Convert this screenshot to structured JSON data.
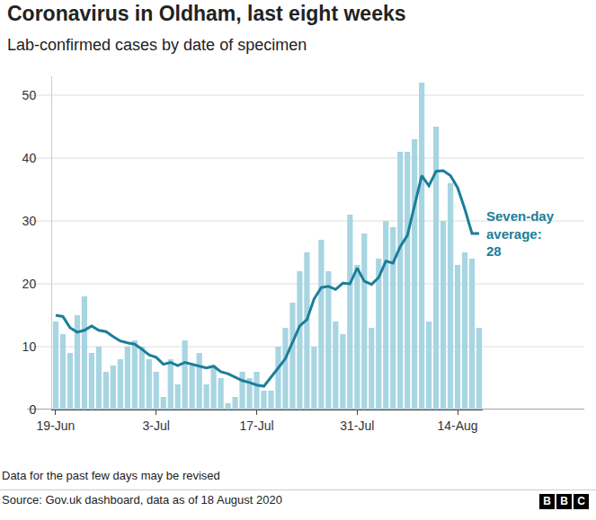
{
  "chart_data": {
    "type": "bar",
    "title": "Coronavirus in Oldham, last eight weeks",
    "subtitle": "Lab-confirmed cases by date of specimen",
    "categories": [
      "19-Jun",
      null,
      null,
      null,
      null,
      null,
      null,
      null,
      null,
      null,
      null,
      null,
      null,
      null,
      "3-Jul",
      null,
      null,
      null,
      null,
      null,
      null,
      null,
      null,
      null,
      null,
      null,
      null,
      null,
      "17-Jul",
      null,
      null,
      null,
      null,
      null,
      null,
      null,
      null,
      null,
      null,
      null,
      null,
      null,
      "31-Jul",
      null,
      null,
      null,
      null,
      null,
      null,
      null,
      null,
      null,
      null,
      null,
      null,
      null,
      "14-Aug",
      null,
      null,
      null
    ],
    "series": [
      {
        "type": "bar",
        "color": "#a8d5e2",
        "values": [
          14,
          12,
          9,
          15,
          18,
          9,
          10,
          6,
          7,
          8,
          10,
          11,
          10,
          8,
          6,
          2,
          8,
          4,
          11,
          7,
          9,
          4,
          7,
          5,
          1,
          2,
          6,
          5,
          6,
          3,
          3,
          10,
          13,
          17,
          22,
          25,
          10,
          27,
          22,
          14,
          12,
          31,
          23,
          28,
          13,
          24,
          30,
          29,
          41,
          41,
          43,
          52,
          14,
          45,
          30,
          36,
          23,
          25,
          24,
          13
        ]
      },
      {
        "type": "line",
        "color": "#1b7e99",
        "values": [
          15,
          14.8,
          13,
          12.3,
          12.6,
          13.3,
          12.6,
          12.4,
          11.6,
          10.9,
          10.6,
          10.4,
          9.6,
          8.7,
          8.3,
          7.2,
          7.5,
          7,
          7.5,
          7.2,
          6.8,
          6.6,
          6.9,
          6,
          5.7,
          5.2,
          4.6,
          4.3,
          3.9,
          3.7,
          5.1,
          6.6,
          8.1,
          10.7,
          13.3,
          14.3,
          17.6,
          19.4,
          19.6,
          19.1,
          20.1,
          20,
          22.5,
          20.4,
          19.9,
          21,
          23.6,
          23.3,
          25.9,
          27.7,
          32.4,
          37.2,
          35.6,
          37.9,
          38,
          37.2,
          35.3,
          31.9,
          28,
          28
        ]
      }
    ],
    "annotations": [
      {
        "text": "Seven-day average: 28"
      }
    ],
    "ylim": [
      0,
      53
    ],
    "yticks": [
      0,
      10,
      20,
      30,
      40,
      50
    ],
    "grid": true,
    "note": "Data for the past few days may be revised",
    "source": "Source: Gov.uk dashboard, data as of 18 August 2020",
    "logo": "BBC"
  }
}
